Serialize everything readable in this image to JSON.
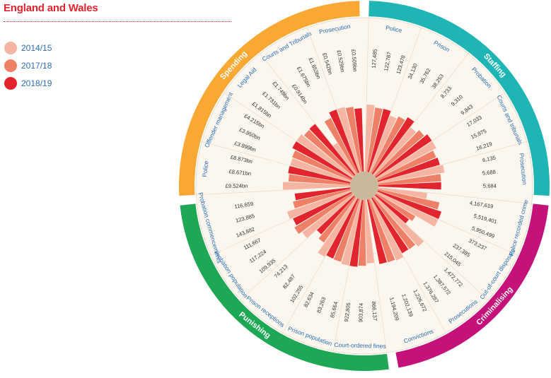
{
  "title": "England and Wales",
  "legend": [
    {
      "label": "2014/15",
      "color": "#f6b5a2"
    },
    {
      "label": "2017/18",
      "color": "#ef8068"
    },
    {
      "label": "2018/19",
      "color": "#e1242d"
    }
  ],
  "chart_data": {
    "type": "radial-bar",
    "title": "England and Wales",
    "series": [
      {
        "name": "2014/15",
        "color": "#f6b5a2"
      },
      {
        "name": "2017/18",
        "color": "#ef8068"
      },
      {
        "name": "2018/19",
        "color": "#e1242d"
      }
    ],
    "groups": [
      {
        "name": "Spending",
        "color": "#f9a833",
        "metrics": [
          {
            "label": "Police",
            "values": [
              "£9.524bn",
              "£8.671bn",
              "£8.873bn"
            ]
          },
          {
            "label": "Offender management",
            "values": [
              "£3.899bn",
              "£3.950bn",
              "£4.215bn"
            ]
          },
          {
            "label": "Legal Aid",
            "values": [
              "£1.815bn",
              "£1.731bn",
              "£1.749bn"
            ]
          },
          {
            "label": "Courts and Tribunals",
            "values": [
              "£0.914bn",
              "£1.675bn",
              "£1.853bn"
            ]
          },
          {
            "label": "Prosecution",
            "values": [
              "£0.542bn",
              "£0.529bn",
              "£0.509bn"
            ]
          }
        ]
      },
      {
        "name": "Staffing",
        "color": "#20b5b5",
        "metrics": [
          {
            "label": "Police",
            "values": [
              "127,485",
              "122,787",
              "123,478"
            ]
          },
          {
            "label": "Prison",
            "values": [
              "34,130",
              "35,762",
              "38,253"
            ]
          },
          {
            "label": "Probation",
            "values": [
              "8,733",
              "9,310",
              "9,843"
            ]
          },
          {
            "label": "Courts and tribunals",
            "values": [
              "17,033",
              "15,875",
              "16,219"
            ]
          },
          {
            "label": "Prosecution",
            "values": [
              "6,135",
              "5,688",
              "5,684"
            ]
          }
        ]
      },
      {
        "name": "Criminalising",
        "color": "#c4127a",
        "metrics": [
          {
            "label": "Police recorded crime",
            "values": [
              "4,167,619",
              "5,519,401",
              "5,950,499"
            ]
          },
          {
            "label": "Out-of-court disposals",
            "values": [
              "373,237",
              "237,385",
              "215,045"
            ]
          },
          {
            "label": "Prosecutions",
            "values": [
              "1,472,772",
              "1,387,572",
              "1,376,287"
            ]
          },
          {
            "label": "Convictions",
            "values": [
              "1,226,672",
              "1,202,139",
              "1,194,209"
            ]
          }
        ]
      },
      {
        "name": "Punishing",
        "color": "#1ea855",
        "metrics": [
          {
            "label": "Court-ordered fines",
            "values": [
              "866,137",
              "903,874",
              "922,805"
            ]
          },
          {
            "label": "Prison population",
            "values": [
              "85,664",
              "83,263",
              "82,634"
            ]
          },
          {
            "label": "Prison receptions",
            "values": [
              "102,255",
              "82,487",
              "74,213"
            ]
          },
          {
            "label": "Probation population",
            "values": [
              "109,935",
              "117,224",
              "111,667"
            ]
          },
          {
            "label": "Probation commencements",
            "values": [
              "143,882",
              "123,885",
              "116,659"
            ]
          }
        ]
      }
    ]
  }
}
